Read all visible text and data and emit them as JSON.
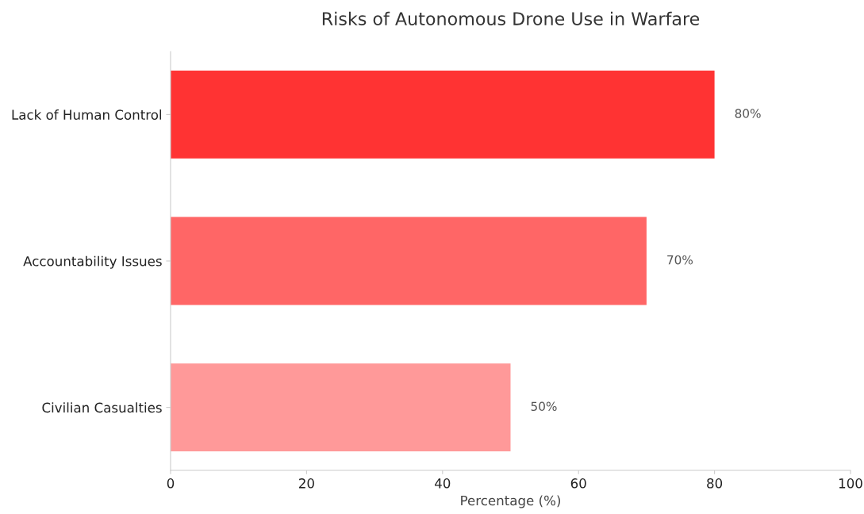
{
  "chart_data": {
    "type": "bar",
    "orientation": "horizontal",
    "title": "Risks of Autonomous Drone Use in Warfare",
    "xlabel": "Percentage (%)",
    "categories": [
      "Lack of Human Control",
      "Accountability Issues",
      "Civilian Casualties"
    ],
    "values": [
      80,
      70,
      50
    ],
    "colors": [
      "#ff3333",
      "#ff6666",
      "#ff9999"
    ],
    "value_labels": [
      "80%",
      "70%",
      "50%"
    ],
    "xlim": [
      0,
      100
    ],
    "xticks": [
      0,
      20,
      40,
      60,
      80,
      100
    ],
    "grid": false
  }
}
